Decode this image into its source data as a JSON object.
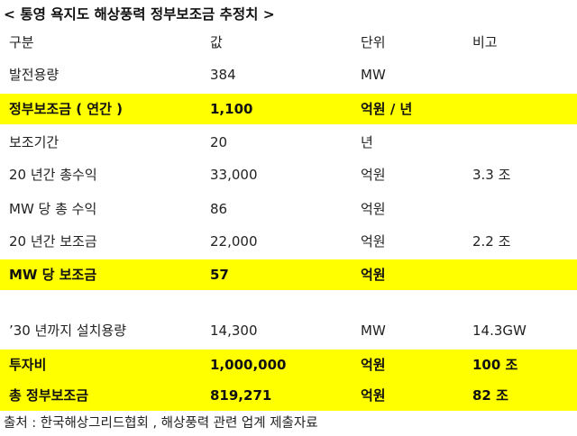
{
  "title": "< 통영 욕지도 해상풍력 정부보조금 추정치 >",
  "header": {
    "c1": "구분",
    "c2": "값",
    "c3": "단위",
    "c4": "비고"
  },
  "rows": [
    {
      "c1": "발전용량",
      "c2": "384",
      "c3": "MW",
      "c4": ""
    },
    {
      "c1": "정부보조금 ( 연간 )",
      "c2": "1,100",
      "c3": "억원 / 년",
      "c4": ""
    },
    {
      "c1": "보조기간",
      "c2": "20",
      "c3": "년",
      "c4": ""
    },
    {
      "c1": "20 년간 총수익",
      "c2": "33,000",
      "c3": "억원",
      "c4": "3.3 조"
    },
    {
      "c1": "MW 당 총 수익",
      "c2": "86",
      "c3": "억원",
      "c4": ""
    },
    {
      "c1": "20 년간 보조금",
      "c2": "22,000",
      "c3": "억원",
      "c4": "2.2 조"
    },
    {
      "c1": "MW 당 보조금",
      "c2": "57",
      "c3": "억원",
      "c4": ""
    },
    {
      "c1": "’30 년까지 설치용량",
      "c2": "14,300",
      "c3": "MW",
      "c4": "14.3GW"
    },
    {
      "c1": "투자비",
      "c2": "1,000,000",
      "c3": "억원",
      "c4": "100 조"
    },
    {
      "c1": "총 정부보조금",
      "c2": "819,271",
      "c3": "억원",
      "c4": "82 조"
    }
  ],
  "source": "출처 : 한국해상그리드협회 , 해상풍력 관련 업계 제출자료",
  "colors": {
    "highlight": "#ffff00"
  }
}
